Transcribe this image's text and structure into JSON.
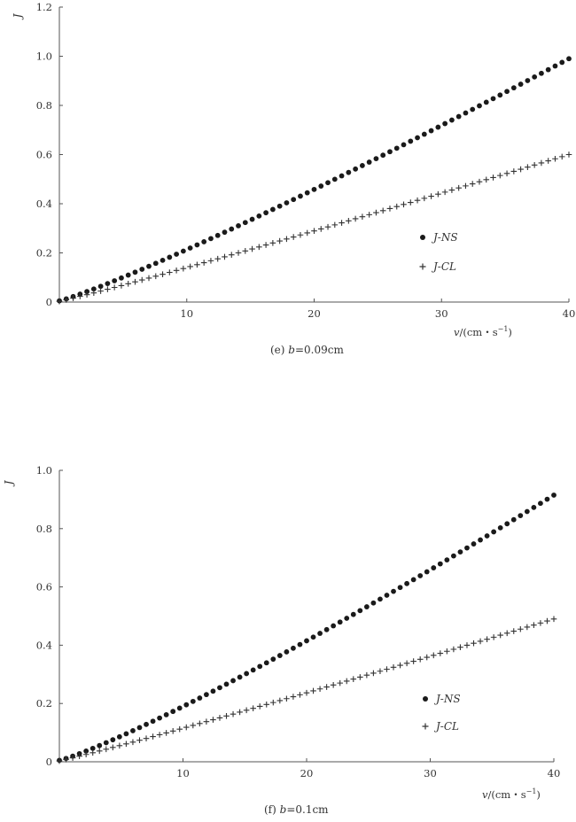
{
  "chart_data": [
    {
      "type": "scatter",
      "panel": "e",
      "caption_prefix": "(e)",
      "caption_var": "b",
      "caption_value": "=0.09cm",
      "xlabel_var": "v",
      "xlabel_unit": "/(cm・s",
      "xlabel_sup": "−1",
      "xlabel_close": ")",
      "ylabel": "J",
      "xlim": [
        0,
        40
      ],
      "ylim": [
        0,
        1.2
      ],
      "x_ticks": [
        10,
        20,
        30,
        40
      ],
      "x_tick_labels": [
        "10",
        "20",
        "30",
        "40"
      ],
      "y_ticks": [
        0,
        0.2,
        0.4,
        0.6,
        0.8,
        1.0,
        1.2
      ],
      "y_tick_labels": [
        "0",
        "0.2",
        "0.4",
        "0.6",
        "0.8",
        "1.0",
        "1.2"
      ],
      "legend_position": "center-right",
      "series": [
        {
          "name": "J-NS",
          "marker": "dot",
          "color": "#1a1a1a",
          "x_start": 0,
          "x_end": 40,
          "count": 75,
          "y_start": 0.005,
          "y_end": 0.99,
          "exponent": 1.12
        },
        {
          "name": "J-CL",
          "marker": "plus",
          "color": "#333333",
          "x_start": 0,
          "x_end": 40,
          "count": 75,
          "y_start": 0.003,
          "y_end": 0.6,
          "exponent": 1.06
        }
      ]
    },
    {
      "type": "scatter",
      "panel": "f",
      "caption_prefix": "(f)",
      "caption_var": "b",
      "caption_value": "=0.1cm",
      "xlabel_var": "v",
      "xlabel_unit": "/(cm・s",
      "xlabel_sup": "−1",
      "xlabel_close": ")",
      "ylabel": "J",
      "xlim": [
        0,
        40
      ],
      "ylim": [
        0,
        1.0
      ],
      "x_ticks": [
        10,
        20,
        30,
        40
      ],
      "x_tick_labels": [
        "10",
        "20",
        "30",
        "40"
      ],
      "y_ticks": [
        0,
        0.2,
        0.4,
        0.6,
        0.8,
        1.0
      ],
      "y_tick_labels": [
        "0",
        "0.2",
        "0.4",
        "0.6",
        "0.8",
        "1.0"
      ],
      "legend_position": "center-right",
      "series": [
        {
          "name": "J-NS",
          "marker": "dot",
          "color": "#1a1a1a",
          "x_start": 0,
          "x_end": 40,
          "count": 75,
          "y_start": 0.005,
          "y_end": 0.915,
          "exponent": 1.15
        },
        {
          "name": "J-CL",
          "marker": "plus",
          "color": "#333333",
          "x_start": 0,
          "x_end": 40,
          "count": 75,
          "y_start": 0.003,
          "y_end": 0.49,
          "exponent": 1.06
        }
      ]
    }
  ]
}
